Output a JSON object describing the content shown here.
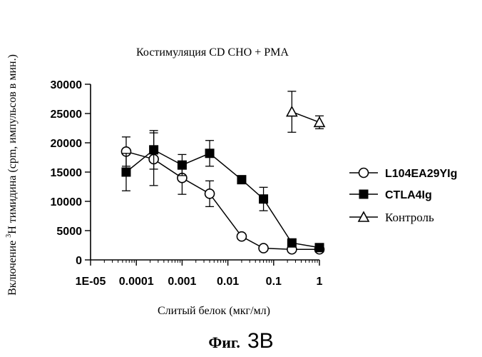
{
  "chart_data": {
    "type": "scatter",
    "title": "Костимуляция CD CHO + PMA",
    "xlabel": "Слитый белок (мкг/мл)",
    "ylabel_prefix": "Включение ",
    "ylabel_sup": "3",
    "ylabel_rest": "H тимидина (cpm, импульсов в мин.)",
    "x_scale": "log",
    "xlim": [
      1e-05,
      1
    ],
    "ylim": [
      0,
      30000
    ],
    "x_ticks": [
      1e-05,
      0.0001,
      0.001,
      0.01,
      0.1,
      1
    ],
    "x_tick_labels": [
      "1E-05",
      "0.0001",
      "0.001",
      "0.01",
      "0.1",
      "1"
    ],
    "y_ticks": [
      0,
      5000,
      10000,
      15000,
      20000,
      25000,
      30000
    ],
    "y_tick_labels": [
      "0",
      "5000",
      "10000",
      "15000",
      "20000",
      "25000",
      "30000"
    ],
    "legend_position": "right",
    "series": [
      {
        "name": "L104EA29YIg",
        "marker": "circle-open",
        "x": [
          6e-05,
          0.00024,
          0.001,
          0.004,
          0.02,
          0.06,
          0.25,
          1
        ],
        "y": [
          18500,
          17200,
          14000,
          11300,
          4000,
          2000,
          1800,
          1800
        ],
        "err": [
          2500,
          4500,
          2800,
          2200,
          0,
          0,
          0,
          0
        ]
      },
      {
        "name": "CTLA4Ig",
        "marker": "square-filled",
        "x": [
          6e-05,
          0.00024,
          0.001,
          0.004,
          0.02,
          0.06,
          0.25,
          1
        ],
        "y": [
          15000,
          18800,
          16200,
          18200,
          13700,
          10400,
          2900,
          2100
        ],
        "err": [
          3200,
          3300,
          1800,
          2200,
          0,
          2000,
          0,
          0
        ]
      },
      {
        "name": "Контроль",
        "marker": "triangle-open",
        "x": [
          0.25,
          1
        ],
        "y": [
          25300,
          23500
        ],
        "err": [
          3500,
          1100
        ]
      }
    ]
  },
  "caption": {
    "prefix": "Фиг.",
    "number": "3B"
  }
}
